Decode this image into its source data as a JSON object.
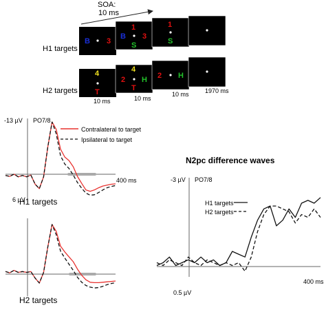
{
  "paradigm": {
    "soa_label": "SOA:",
    "soa_value": "10 ms",
    "rows": [
      {
        "label": "H1 targets",
        "frames": [
          {
            "letters": [
              {
                "text": "B",
                "color": "#1a2fd6"
              },
              {
                "text": "3",
                "color": "#e01010"
              }
            ]
          },
          {
            "letters": [
              {
                "text": "B",
                "color": "#1a2fd6"
              },
              {
                "text": "1",
                "color": "#e01010"
              },
              {
                "text": "3",
                "color": "#e01010"
              },
              {
                "text": "S",
                "color": "#22c02a"
              }
            ]
          },
          {
            "letters": [
              {
                "text": "1",
                "color": "#e01010"
              },
              {
                "text": "S",
                "color": "#22c02a"
              }
            ]
          },
          {
            "letters": []
          }
        ]
      },
      {
        "label": "H2 targets",
        "frames": [
          {
            "letters": [
              {
                "text": "4",
                "color": "#f0e020"
              },
              {
                "text": "T",
                "color": "#e01010"
              }
            ]
          },
          {
            "letters": [
              {
                "text": "4",
                "color": "#f0e020"
              },
              {
                "text": "2",
                "color": "#e01010"
              },
              {
                "text": "H",
                "color": "#22c02a"
              },
              {
                "text": "T",
                "color": "#e01010"
              }
            ]
          },
          {
            "letters": [
              {
                "text": "2",
                "color": "#e01010"
              },
              {
                "text": "H",
                "color": "#22c02a"
              }
            ]
          },
          {
            "letters": []
          }
        ],
        "durations": [
          "10 ms",
          "10 ms",
          "10 ms",
          "1970 ms"
        ]
      }
    ]
  },
  "erp": {
    "electrode": "PO7/8",
    "y_top_label": "-13 µV",
    "y_bottom_label": "6 µV",
    "x_end_label": "400 ms",
    "legend": [
      {
        "label": "Contralateral to target",
        "color": "#e8322f",
        "style": "solid"
      },
      {
        "label": "Ipsilateral to target",
        "color": "#111111",
        "style": "dashed"
      }
    ],
    "panels": [
      {
        "label": "H1 targets"
      },
      {
        "label": "H2 targets"
      }
    ]
  },
  "diff": {
    "title": "N2pc difference waves",
    "electrode": "PO7/8",
    "y_top_label": "-3 µV",
    "y_bottom_label": "0.5 µV",
    "x_end_label": "400 ms",
    "legend": [
      {
        "label": "H1 targets",
        "style": "solid"
      },
      {
        "label": "H2 targets",
        "style": "dashed"
      }
    ]
  },
  "chart_data": [
    {
      "type": "line",
      "title": "H1 targets",
      "ylabel": "PO7/8",
      "x": [
        -100,
        -80,
        -60,
        -40,
        -20,
        0,
        20,
        40,
        60,
        80,
        100,
        120,
        140,
        160,
        180,
        200,
        220,
        240,
        260,
        280,
        300,
        320,
        340,
        360,
        380,
        400,
        420
      ],
      "xlim": [
        -100,
        420
      ],
      "ylim": [
        6,
        -13
      ],
      "y_inverted": true,
      "series": [
        {
          "name": "Contralateral to target",
          "color": "#e8322f",
          "values": [
            0,
            0.2,
            -0.3,
            0.3,
            0,
            0.3,
            -0.1,
            2.0,
            3.0,
            0.3,
            -6.5,
            -12.2,
            -10.5,
            -6.0,
            -4.2,
            -3.4,
            -2.0,
            0.2,
            1.8,
            3.3,
            3.6,
            3.3,
            2.8,
            2.4,
            2.2,
            2.0,
            1.9
          ]
        },
        {
          "name": "Ipsilateral to target",
          "color": "#111111",
          "values": [
            0,
            0.2,
            -0.3,
            0.3,
            0,
            0.3,
            -0.1,
            2.0,
            3.0,
            0.3,
            -6.5,
            -12.2,
            -9.5,
            -4.5,
            -2.6,
            -1.6,
            -0.1,
            1.6,
            2.9,
            4.0,
            4.5,
            4.4,
            3.9,
            3.3,
            2.8,
            2.5,
            2.3
          ]
        }
      ]
    },
    {
      "type": "line",
      "title": "H2 targets",
      "ylabel": "PO7/8",
      "x": [
        -100,
        -80,
        -60,
        -40,
        -20,
        0,
        20,
        40,
        60,
        80,
        100,
        120,
        140,
        160,
        180,
        200,
        220,
        240,
        260,
        280,
        300,
        320,
        340,
        360,
        380,
        400,
        420
      ],
      "xlim": [
        -100,
        420
      ],
      "ylim": [
        6,
        -13
      ],
      "y_inverted": true,
      "series": [
        {
          "name": "Contralateral to target",
          "color": "#e8322f",
          "values": [
            0,
            0.3,
            -0.3,
            0.2,
            0,
            0.2,
            0,
            1.6,
            2.8,
            0.2,
            -6.0,
            -11.5,
            -9.8,
            -6.2,
            -4.8,
            -3.6,
            -2.4,
            -0.6,
            0.9,
            2.0,
            2.6,
            2.7,
            2.7,
            2.6,
            2.5,
            2.4,
            2.3
          ]
        },
        {
          "name": "Ipsilateral to target",
          "color": "#111111",
          "values": [
            0,
            0.3,
            -0.3,
            0.2,
            0,
            0.2,
            0,
            1.6,
            2.8,
            0.2,
            -6.0,
            -11.5,
            -9.0,
            -5.0,
            -3.3,
            -1.8,
            -0.3,
            1.4,
            2.6,
            3.4,
            3.8,
            4.0,
            3.9,
            3.6,
            3.2,
            2.9,
            2.7
          ]
        }
      ]
    },
    {
      "type": "line",
      "title": "N2pc difference waves",
      "ylabel": "PO7/8",
      "x": [
        -100,
        -80,
        -60,
        -40,
        -20,
        0,
        20,
        40,
        60,
        80,
        100,
        120,
        140,
        160,
        180,
        200,
        220,
        240,
        260,
        280,
        300,
        320,
        340,
        360,
        380,
        400,
        420
      ],
      "xlim": [
        -100,
        420
      ],
      "ylim": [
        0.5,
        -3
      ],
      "y_inverted": true,
      "series": [
        {
          "name": "H1 targets",
          "color": "#111111",
          "values": [
            0.1,
            0.0,
            -0.2,
            0.1,
            0.0,
            -0.1,
            0.0,
            -0.2,
            0.0,
            -0.1,
            0.1,
            0.0,
            -0.4,
            -0.3,
            -0.2,
            -0.9,
            -1.5,
            -1.9,
            -2.0,
            -1.3,
            -1.5,
            -1.9,
            -1.6,
            -2.1,
            -2.2,
            -2.1,
            -2.3
          ]
        },
        {
          "name": "H2 targets",
          "color": "#111111",
          "values": [
            0.0,
            0.1,
            -0.1,
            0.0,
            0.1,
            -0.2,
            0.0,
            0.1,
            -0.1,
            0.0,
            0.1,
            0.0,
            0.1,
            0.0,
            0.3,
            -0.2,
            -1.1,
            -1.7,
            -2.0,
            -2.0,
            -1.9,
            -1.8,
            -1.4,
            -1.7,
            -1.6,
            -1.9,
            -1.6
          ]
        }
      ]
    }
  ]
}
